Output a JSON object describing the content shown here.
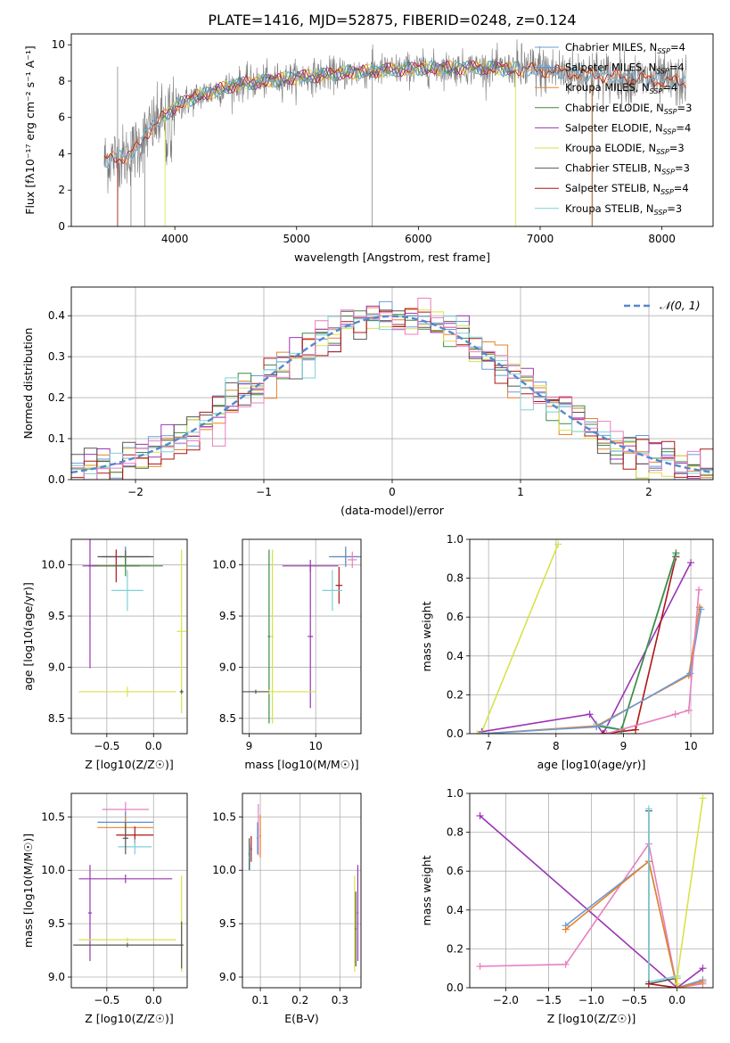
{
  "figure_title": "PLATE=1416, MJD=52875, FIBERID=0248, z=0.124",
  "colors": {
    "Chabrier MILES": "#6a9bd8",
    "Salpeter MILES": "#5a8fd0",
    "Kroupa MILES": "#e8822b",
    "Chabrier ELODIE": "#3f8a3f",
    "Salpeter ELODIE": "#9b35b5",
    "Kroupa ELODIE": "#d8e24a",
    "Chabrier STELIB": "#555555",
    "Salpeter STELIB": "#b01515",
    "Kroupa STELIB": "#7fcfd8",
    "grid": "#b0b0b0",
    "normal_curve": "#5588cc",
    "pink": "#e87fbf"
  },
  "chart_data": [
    {
      "id": "spectrum",
      "type": "line",
      "xlabel": "wavelength [Angstrom, rest frame]",
      "ylabel": "Flux [fλ10⁻¹⁷ erg cm⁻² s⁻¹ A⁻¹]",
      "xlim": [
        3150,
        8420
      ],
      "ylim": [
        0,
        10.6
      ],
      "xticks": [
        4000,
        5000,
        6000,
        7000,
        8000
      ],
      "yticks": [
        0,
        2,
        4,
        6,
        8,
        10
      ],
      "grid": false,
      "legend_position": "right",
      "legend": [
        "Chabrier MILES, N_SSP=4",
        "Salpeter MILES, N_SSP=4",
        "Kroupa MILES, N_SSP=4",
        "Chabrier ELODIE, N_SSP=3",
        "Salpeter ELODIE, N_SSP=4",
        "Kroupa ELODIE, N_SSP=3",
        "Chabrier STELIB, N_SSP=3",
        "Salpeter STELIB, N_SSP=4",
        "Kroupa STELIB, N_SSP=3"
      ],
      "continuum": {
        "x": [
          3420,
          3500,
          3600,
          3700,
          3800,
          3900,
          4000,
          4200,
          4500,
          5000,
          5500,
          6000,
          6500,
          7000,
          7500,
          8000,
          8200
        ],
        "y": [
          3.6,
          3.8,
          3.8,
          4.4,
          5.4,
          6.0,
          6.6,
          7.2,
          7.8,
          8.2,
          8.5,
          8.7,
          8.75,
          8.6,
          8.3,
          8.0,
          7.9
        ]
      },
      "observed_range": [
        3420,
        8200
      ]
    },
    {
      "id": "residuals",
      "type": "histogram",
      "xlabel": "(data-model)/error",
      "ylabel": "Normed distribution",
      "xlim": [
        -2.5,
        2.5
      ],
      "ylim": [
        0,
        0.47
      ],
      "xticks": [
        -2,
        -1,
        0,
        1,
        2
      ],
      "yticks": [
        0,
        0.1,
        0.2,
        0.3,
        0.4
      ],
      "grid": true,
      "legend_position": "top-right",
      "legend": [
        "𝒩(0, 1)"
      ],
      "bin_width": 0.1
    },
    {
      "id": "age_vs_Z",
      "type": "errorbar",
      "xlabel": "Z [log10(Z/Z☉)]",
      "ylabel": "age  [log10(age/yr)]",
      "xlim": [
        -0.88,
        0.36
      ],
      "ylim": [
        8.35,
        10.25
      ],
      "xticks": [
        -0.5,
        0.0
      ],
      "yticks": [
        8.5,
        9.0,
        9.5,
        10.0
      ],
      "grid": true,
      "points": [
        {
          "x": -0.3,
          "xerr": 0.28,
          "y": 10.08,
          "yerr": 0.08,
          "color": "Kroupa MILES"
        },
        {
          "x": -0.3,
          "xerr": 0.25,
          "y": 10.08,
          "yerr": 0.1,
          "color": "Salpeter MILES"
        },
        {
          "x": -0.3,
          "xerr": 0.3,
          "y": 10.08,
          "yerr": 0.06,
          "color": "Chabrier STELIB"
        },
        {
          "x": -0.4,
          "xerr": 0.25,
          "y": 9.99,
          "yerr": 0.16,
          "color": "Salpeter STELIB"
        },
        {
          "x": -0.3,
          "xerr": 0.4,
          "y": 9.99,
          "yerr": 0.1,
          "color": "Chabrier ELODIE"
        },
        {
          "x": -0.28,
          "xerr": 0.17,
          "y": 9.75,
          "yerr": 0.2,
          "color": "Kroupa STELIB"
        },
        {
          "x": -0.68,
          "xerr": 0.08,
          "y": 9.99,
          "yerr": 1.0,
          "color": "Salpeter ELODIE"
        },
        {
          "x": 0.3,
          "xerr": 0.05,
          "y": 9.35,
          "yerr": 0.8,
          "color": "Kroupa ELODIE"
        },
        {
          "x": -0.28,
          "xerr": 0.52,
          "y": 8.76,
          "yerr": 0.05,
          "color": "Kroupa ELODIE"
        },
        {
          "x": 0.3,
          "xerr": 0.02,
          "y": 8.76,
          "yerr": 0.02,
          "color": "Chabrier STELIB"
        }
      ]
    },
    {
      "id": "age_vs_mass",
      "type": "errorbar",
      "xlabel": "mass [log10(M/M☉)]",
      "ylabel": "",
      "xlim": [
        8.9,
        10.68
      ],
      "ylim": [
        8.35,
        10.25
      ],
      "xticks": [
        9,
        10
      ],
      "yticks": [
        8.5,
        9.0,
        9.5,
        10.0
      ],
      "grid": true,
      "points": [
        {
          "x": 10.45,
          "xerr": 0.2,
          "y": 10.08,
          "yerr": 0.08,
          "color": "Kroupa MILES"
        },
        {
          "x": 10.45,
          "xerr": 0.25,
          "y": 10.08,
          "yerr": 0.1,
          "color": "Salpeter MILES"
        },
        {
          "x": 10.55,
          "xerr": 0.07,
          "y": 10.05,
          "yerr": 0.08,
          "color": "pink"
        },
        {
          "x": 10.35,
          "xerr": 0.05,
          "y": 9.8,
          "yerr": 0.18,
          "color": "Salpeter STELIB"
        },
        {
          "x": 10.25,
          "xerr": 0.15,
          "y": 9.75,
          "yerr": 0.2,
          "color": "Kroupa STELIB"
        },
        {
          "x": 9.92,
          "xerr": 0.42,
          "y": 9.99,
          "yerr": 0.06,
          "color": "Salpeter ELODIE"
        },
        {
          "x": 9.92,
          "xerr": 0.04,
          "y": 9.3,
          "yerr": 0.7,
          "color": "Salpeter ELODIE"
        },
        {
          "x": 9.3,
          "xerr": 0.02,
          "y": 9.3,
          "yerr": 0.85,
          "color": "Chabrier ELODIE"
        },
        {
          "x": 9.35,
          "xerr": 0.02,
          "y": 9.3,
          "yerr": 0.85,
          "color": "Kroupa ELODIE"
        },
        {
          "x": 9.3,
          "xerr": 0.7,
          "y": 8.76,
          "yerr": 0.02,
          "color": "Kroupa ELODIE"
        },
        {
          "x": 9.1,
          "xerr": 0.2,
          "y": 8.76,
          "yerr": 0.02,
          "color": "Chabrier STELIB"
        }
      ]
    },
    {
      "id": "cum_mass_vs_age",
      "type": "line",
      "xlabel": "age  [log10(age/yr)]",
      "ylabel": "mass weight",
      "xlim": [
        6.72,
        10.33
      ],
      "ylim": [
        0,
        1
      ],
      "xticks": [
        7,
        8,
        9,
        10
      ],
      "yticks": [
        0.0,
        0.2,
        0.4,
        0.6,
        0.8,
        1.0
      ],
      "grid": true,
      "series": [
        {
          "color": "Kroupa ELODIE",
          "x": [
            6.83,
            6.9,
            8.03
          ],
          "y": [
            0.0,
            0.01,
            0.975
          ]
        },
        {
          "color": "Salpeter ELODIE",
          "x": [
            6.9,
            8.5,
            8.7,
            10.0
          ],
          "y": [
            0.01,
            0.1,
            0.0,
            0.88
          ]
        },
        {
          "color": "Salpeter STELIB",
          "x": [
            8.7,
            9.18,
            9.78
          ],
          "y": [
            0.0,
            0.02,
            0.91
          ]
        },
        {
          "color": "Kroupa STELIB",
          "x": [
            8.6,
            8.97,
            9.78
          ],
          "y": [
            0.05,
            0.02,
            0.92
          ]
        },
        {
          "color": "Chabrier ELODIE",
          "x": [
            8.6,
            8.97,
            9.78
          ],
          "y": [
            0.04,
            0.02,
            0.93
          ]
        },
        {
          "color": "Kroupa MILES",
          "x": [
            6.9,
            8.6,
            9.97,
            10.13
          ],
          "y": [
            0.0,
            0.04,
            0.3,
            0.65
          ]
        },
        {
          "color": "Chabrier MILES",
          "x": [
            6.9,
            8.6,
            9.99,
            10.15
          ],
          "y": [
            0.0,
            0.035,
            0.31,
            0.64
          ]
        },
        {
          "color": "pink",
          "x": [
            8.75,
            9.77,
            9.97,
            10.12
          ],
          "y": [
            0.0,
            0.1,
            0.12,
            0.74
          ]
        }
      ]
    },
    {
      "id": "mass_vs_Z",
      "type": "errorbar",
      "xlabel": "Z [log10(Z/Z☉)]",
      "ylabel": "mass [log10(M/M☉)]",
      "xlim": [
        -0.88,
        0.36
      ],
      "ylim": [
        8.9,
        10.72
      ],
      "xticks": [
        -0.5,
        0.0
      ],
      "yticks": [
        9.0,
        9.5,
        10.0,
        10.5
      ],
      "grid": true,
      "points": [
        {
          "x": -0.3,
          "xerr": 0.25,
          "y": 10.57,
          "yerr": 0.07,
          "color": "pink"
        },
        {
          "x": -0.3,
          "xerr": 0.3,
          "y": 10.45,
          "yerr": 0.1,
          "color": "Salpeter MILES"
        },
        {
          "x": -0.3,
          "xerr": 0.3,
          "y": 10.4,
          "yerr": 0.1,
          "color": "Kroupa MILES"
        },
        {
          "x": -0.2,
          "xerr": 0.2,
          "y": 10.33,
          "yerr": 0.08,
          "color": "Salpeter STELIB"
        },
        {
          "x": -0.2,
          "xerr": 0.18,
          "y": 10.22,
          "yerr": 0.07,
          "color": "Kroupa STELIB"
        },
        {
          "x": -0.3,
          "xerr": 0.03,
          "y": 10.3,
          "yerr": 0.15,
          "color": "Chabrier STELIB"
        },
        {
          "x": -0.3,
          "xerr": 0.5,
          "y": 9.92,
          "yerr": 0.04,
          "color": "Salpeter ELODIE"
        },
        {
          "x": -0.68,
          "xerr": 0.02,
          "y": 9.6,
          "yerr": 0.45,
          "color": "Salpeter ELODIE"
        },
        {
          "x": 0.3,
          "xerr": 0.02,
          "y": 9.5,
          "yerr": 0.45,
          "color": "Kroupa ELODIE"
        },
        {
          "x": -0.28,
          "xerr": 0.52,
          "y": 9.35,
          "yerr": 0.02,
          "color": "Kroupa ELODIE"
        },
        {
          "x": -0.28,
          "xerr": 0.58,
          "y": 9.3,
          "yerr": 0.02,
          "color": "Chabrier STELIB"
        },
        {
          "x": 0.3,
          "xerr": 0.02,
          "y": 9.3,
          "yerr": 0.22,
          "color": "Chabrier STELIB"
        }
      ]
    },
    {
      "id": "mass_vs_EBV",
      "type": "errorbar",
      "xlabel": "E(B-V)",
      "ylabel": "",
      "xlim": [
        0.055,
        0.353
      ],
      "ylim": [
        8.9,
        10.72
      ],
      "xticks": [
        0.1,
        0.2,
        0.3
      ],
      "yticks": [
        9.0,
        9.5,
        10.0,
        10.5
      ],
      "grid": true,
      "points": [
        {
          "x": 0.095,
          "xerr": 0.002,
          "y": 10.38,
          "yerr": 0.24,
          "color": "pink"
        },
        {
          "x": 0.1,
          "xerr": 0.002,
          "y": 10.32,
          "yerr": 0.2,
          "color": "Kroupa MILES"
        },
        {
          "x": 0.093,
          "xerr": 0.002,
          "y": 10.3,
          "yerr": 0.15,
          "color": "Salpeter MILES"
        },
        {
          "x": 0.077,
          "xerr": 0.002,
          "y": 10.2,
          "yerr": 0.12,
          "color": "Salpeter STELIB"
        },
        {
          "x": 0.072,
          "xerr": 0.002,
          "y": 10.15,
          "yerr": 0.15,
          "color": "Chabrier STELIB"
        },
        {
          "x": 0.074,
          "xerr": 0.002,
          "y": 10.12,
          "yerr": 0.12,
          "color": "Kroupa STELIB"
        },
        {
          "x": 0.345,
          "xerr": 0.002,
          "y": 9.6,
          "yerr": 0.45,
          "color": "Salpeter ELODIE"
        },
        {
          "x": 0.337,
          "xerr": 0.002,
          "y": 9.5,
          "yerr": 0.45,
          "color": "Kroupa ELODIE"
        },
        {
          "x": 0.34,
          "xerr": 0.002,
          "y": 9.45,
          "yerr": 0.35,
          "color": "Chabrier STELIB"
        }
      ]
    },
    {
      "id": "cum_mass_vs_Z",
      "type": "line",
      "xlabel": "Z [log10(Z/Z☉)]",
      "ylabel": "mass weight",
      "xlim": [
        -2.42,
        0.42
      ],
      "ylim": [
        0,
        1
      ],
      "xticks": [
        -2.0,
        -1.5,
        -1.0,
        -0.5,
        0.0
      ],
      "yticks": [
        0.0,
        0.2,
        0.4,
        0.6,
        0.8,
        1.0
      ],
      "grid": true,
      "series": [
        {
          "color": "Salpeter ELODIE",
          "x": [
            -2.3,
            0.0,
            0.3
          ],
          "y": [
            0.885,
            0.0,
            0.1
          ]
        },
        {
          "color": "pink",
          "x": [
            -2.3,
            -1.3,
            -0.33,
            0.0,
            0.3
          ],
          "y": [
            0.11,
            0.12,
            0.74,
            0.0,
            0.02
          ]
        },
        {
          "color": "Chabrier MILES",
          "x": [
            -1.3,
            -0.33,
            0.0,
            0.3
          ],
          "y": [
            0.32,
            0.65,
            0.0,
            0.04
          ]
        },
        {
          "color": "Kroupa MILES",
          "x": [
            -1.3,
            -0.33,
            0.0,
            0.3
          ],
          "y": [
            0.3,
            0.65,
            0.0,
            0.03
          ]
        },
        {
          "color": "Chabrier STELIB",
          "x": [
            -0.33,
            -0.33,
            0.0
          ],
          "y": [
            0.91,
            0.02,
            0.05
          ]
        },
        {
          "color": "Kroupa STELIB",
          "x": [
            -0.33,
            -0.33,
            0.0
          ],
          "y": [
            0.92,
            0.03,
            0.06
          ]
        },
        {
          "color": "Salpeter STELIB",
          "x": [
            -0.33,
            0.0,
            0.0
          ],
          "y": [
            0.02,
            0.0,
            0.05
          ]
        },
        {
          "color": "Kroupa ELODIE",
          "x": [
            0.0,
            0.0,
            0.3
          ],
          "y": [
            0.02,
            0.05,
            0.975
          ]
        }
      ]
    }
  ]
}
